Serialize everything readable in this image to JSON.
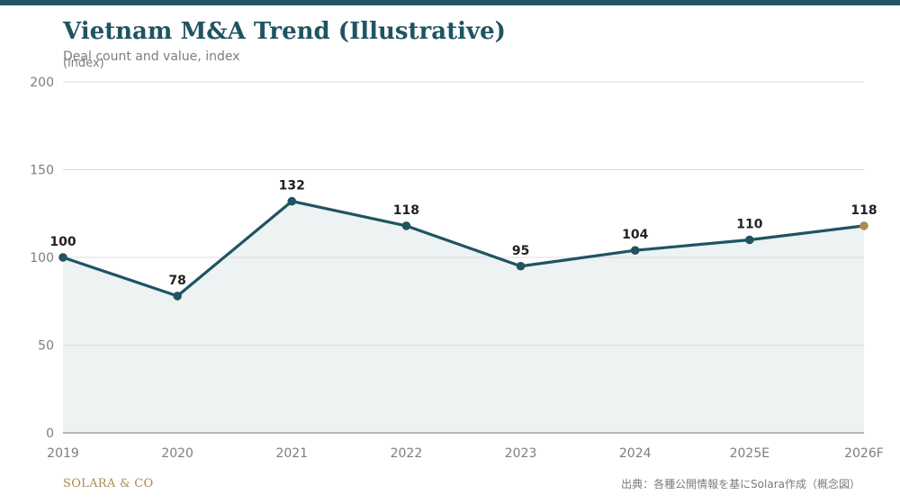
{
  "header": {
    "title": "Vietnam M&A Trend (Illustrative)",
    "subtitle": "Deal count and value, index",
    "unit": "(index)"
  },
  "footer": {
    "brand": "SOLARA & CO",
    "source": "出典：各種公開情報を基にSolara作成（概念図）"
  },
  "colors": {
    "primary": "#1f5462",
    "accent": "#b08a52",
    "area_fill": "#edf2f2",
    "grid": "#dcdcdc",
    "tick_text": "#7a7f80",
    "label_text": "#222222"
  },
  "chart_data": {
    "type": "line",
    "categories": [
      "2019",
      "2020",
      "2021",
      "2022",
      "2023",
      "2024",
      "2025E",
      "2026F"
    ],
    "values": [
      100,
      78,
      132,
      118,
      95,
      104,
      110,
      118
    ],
    "y_ticks": [
      0,
      50,
      100,
      150,
      200
    ],
    "ylim": [
      0,
      200
    ],
    "grid": true,
    "area_fill": true,
    "highlight_last_point": true,
    "data_labels": true
  }
}
